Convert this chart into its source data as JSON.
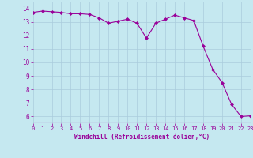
{
  "x": [
    0,
    1,
    2,
    3,
    4,
    5,
    6,
    7,
    8,
    9,
    10,
    11,
    12,
    13,
    14,
    15,
    16,
    17,
    18,
    19,
    20,
    21,
    22,
    23
  ],
  "y": [
    13.7,
    13.8,
    13.75,
    13.7,
    13.6,
    13.6,
    13.55,
    13.3,
    12.9,
    13.05,
    13.2,
    12.9,
    11.8,
    12.9,
    13.2,
    13.5,
    13.3,
    13.1,
    11.2,
    9.5,
    8.5,
    6.9,
    6.0,
    6.05
  ],
  "line_color": "#990099",
  "marker": "D",
  "marker_size": 2,
  "bg_color": "#c5e8f0",
  "grid_color": "#aaccdd",
  "xlabel": "Windchill (Refroidissement éolien,°C)",
  "xlabel_color": "#990099",
  "tick_color": "#990099",
  "xlim": [
    0,
    23
  ],
  "ylim": [
    5.5,
    14.5
  ],
  "yticks": [
    6,
    7,
    8,
    9,
    10,
    11,
    12,
    13,
    14
  ],
  "xticks": [
    0,
    1,
    2,
    3,
    4,
    5,
    6,
    7,
    8,
    9,
    10,
    11,
    12,
    13,
    14,
    15,
    16,
    17,
    18,
    19,
    20,
    21,
    22,
    23
  ]
}
